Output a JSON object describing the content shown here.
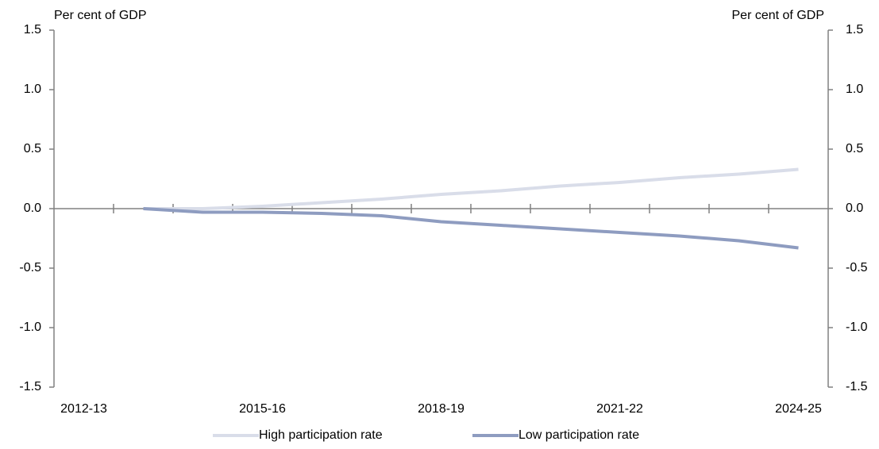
{
  "chart_data": {
    "type": "line",
    "y_label": "Per cent of GDP",
    "y2_label": "Per cent of GDP",
    "categories": [
      "2012-13",
      null,
      null,
      "2015-16",
      null,
      null,
      "2018-19",
      null,
      null,
      "2021-22",
      null,
      null,
      "2024-25"
    ],
    "series": [
      {
        "name": "High participation rate",
        "color": "#d9dde9",
        "values": [
          null,
          0,
          0.0,
          0.02,
          0.05,
          0.08,
          0.12,
          0.15,
          0.19,
          0.22,
          0.26,
          0.29,
          0.33
        ]
      },
      {
        "name": "Low participation rate",
        "color": "#8e9cc0",
        "values": [
          null,
          0,
          -0.03,
          -0.03,
          -0.04,
          -0.06,
          -0.11,
          -0.14,
          -0.17,
          -0.2,
          -0.23,
          -0.27,
          -0.33
        ]
      }
    ],
    "ylim": [
      -1.5,
      1.5
    ],
    "yticks": [
      -1.5,
      {
        "value": -1,
        "label": "-1.0"
      },
      -0.5,
      {
        "value": 0,
        "label": "0.0"
      },
      0.5,
      {
        "value": 1,
        "label": "1.0"
      },
      1.5
    ],
    "y2lim": [
      -1.5,
      1.5
    ],
    "y2ticks": [
      -1.5,
      {
        "value": -1,
        "label": "-1.0"
      },
      -0.5,
      {
        "value": 0,
        "label": "0.0"
      },
      0.5,
      {
        "value": 1,
        "label": "1.0"
      },
      1.5
    ],
    "legend": "bottom"
  }
}
